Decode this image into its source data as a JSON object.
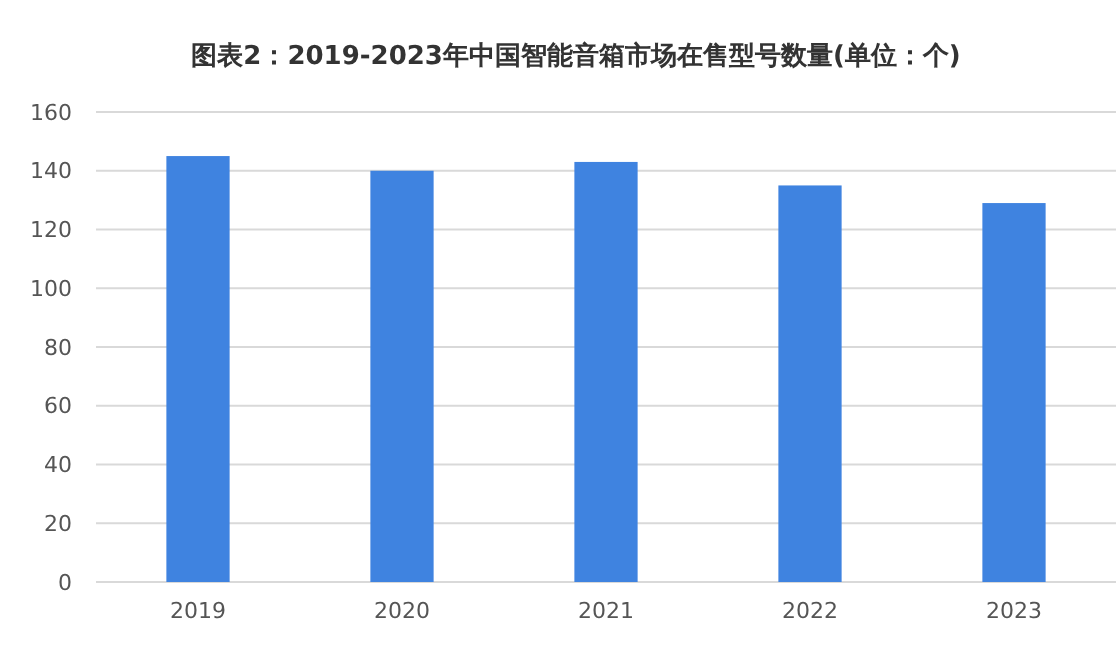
{
  "chart_data": {
    "type": "bar",
    "title": "图表2：2019-2023年中国智能音箱市场在售型号数量(单位：个)",
    "categories": [
      "2019",
      "2020",
      "2021",
      "2022",
      "2023"
    ],
    "values": [
      145,
      140,
      143,
      135,
      129
    ],
    "color": "#3f83e0",
    "ylim": [
      0,
      160
    ],
    "yticks": [
      0,
      20,
      40,
      60,
      80,
      100,
      120,
      140,
      160
    ],
    "grid": "y"
  }
}
